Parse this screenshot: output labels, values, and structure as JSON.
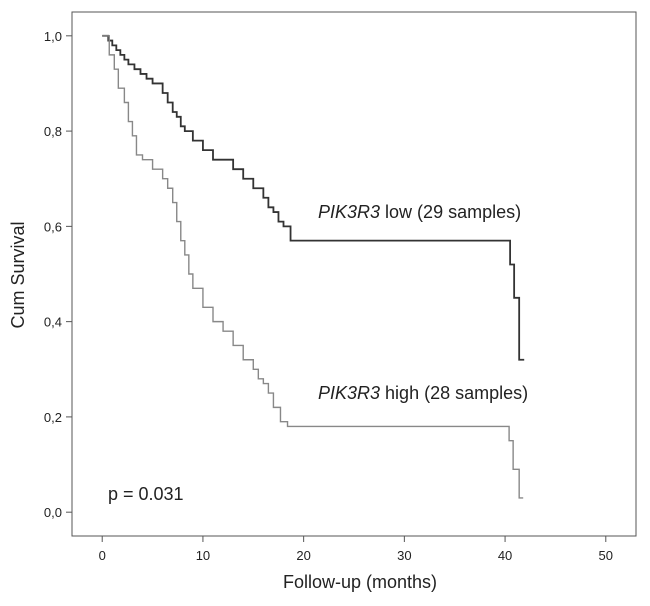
{
  "chart_data": {
    "type": "line",
    "subtype": "kaplan-meier step",
    "xlabel": "Follow-up (months)",
    "ylabel": "Cum Survival",
    "xlim": [
      -3,
      53
    ],
    "ylim": [
      -0.05,
      1.05
    ],
    "x_ticks": [
      0,
      10,
      20,
      30,
      40,
      50
    ],
    "x_tick_labels": [
      "0",
      "10",
      "20",
      "30",
      "40",
      "50"
    ],
    "y_ticks": [
      0.0,
      0.2,
      0.4,
      0.6,
      0.8,
      1.0
    ],
    "y_tick_labels": [
      "0,0",
      "0,2",
      "0,4",
      "0,6",
      "0,8",
      "1,0"
    ],
    "p_value_text": "p = 0.031",
    "series": [
      {
        "name": "PIK3R3 low (29 samples)",
        "gene": "PIK3R3",
        "label_suffix": " low (29 samples)",
        "color": "#333333",
        "x": [
          0.0,
          0.6,
          1.0,
          1.4,
          1.8,
          2.2,
          2.6,
          3.2,
          3.8,
          4.4,
          5.0,
          6.0,
          6.5,
          7.0,
          7.4,
          7.8,
          8.2,
          9.0,
          10.0,
          11.0,
          12.0,
          13.0,
          14.0,
          15.0,
          16.0,
          16.5,
          17.0,
          17.5,
          18.0,
          18.7,
          40.5,
          40.9,
          41.4,
          41.9
        ],
        "y": [
          1.0,
          0.99,
          0.98,
          0.97,
          0.96,
          0.95,
          0.94,
          0.93,
          0.92,
          0.91,
          0.9,
          0.88,
          0.86,
          0.84,
          0.83,
          0.81,
          0.8,
          0.78,
          0.76,
          0.74,
          0.74,
          0.72,
          0.7,
          0.68,
          0.66,
          0.64,
          0.63,
          0.61,
          0.6,
          0.57,
          0.52,
          0.45,
          0.32,
          0.32
        ]
      },
      {
        "name": "PIK3R3 high (28 samples)",
        "gene": "PIK3R3",
        "label_suffix": " high (28 samples)",
        "color": "#888888",
        "x": [
          0.0,
          0.7,
          1.2,
          1.6,
          2.2,
          2.6,
          3.0,
          3.4,
          4.0,
          5.0,
          6.0,
          6.5,
          7.0,
          7.4,
          7.8,
          8.2,
          8.6,
          9.0,
          10.0,
          11.0,
          12.0,
          13.0,
          14.0,
          15.0,
          15.5,
          16.0,
          16.5,
          17.0,
          17.7,
          18.4,
          40.4,
          40.8,
          41.4,
          41.8
        ],
        "y": [
          1.0,
          0.96,
          0.93,
          0.89,
          0.86,
          0.82,
          0.79,
          0.75,
          0.74,
          0.72,
          0.7,
          0.68,
          0.65,
          0.61,
          0.57,
          0.54,
          0.5,
          0.47,
          0.43,
          0.4,
          0.38,
          0.35,
          0.32,
          0.3,
          0.28,
          0.27,
          0.25,
          0.22,
          0.19,
          0.18,
          0.15,
          0.09,
          0.03,
          0.03
        ]
      }
    ]
  }
}
